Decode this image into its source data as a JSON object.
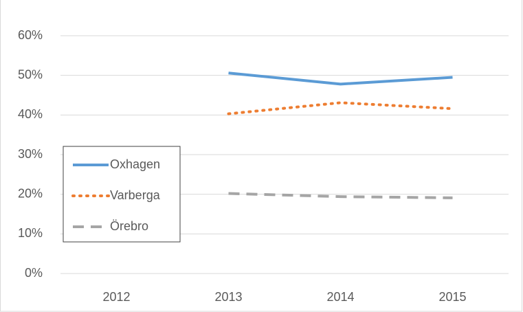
{
  "chart_data": {
    "type": "line",
    "categories": [
      "2012",
      "2013",
      "2014",
      "2015"
    ],
    "series": [
      {
        "name": "Oxhagen",
        "color": "#5b9bd5",
        "dash": "solid",
        "values": [
          null,
          50.6,
          47.8,
          49.5
        ]
      },
      {
        "name": "Varberga",
        "color": "#ed7d31",
        "dash": "dot",
        "values": [
          null,
          40.3,
          43.1,
          41.6
        ]
      },
      {
        "name": "Örebro",
        "color": "#a5a5a5",
        "dash": "dash",
        "values": [
          null,
          20.2,
          19.4,
          19.1
        ]
      }
    ],
    "ylim": [
      0,
      60
    ],
    "yticks": [
      {
        "value": 0,
        "label": "0%"
      },
      {
        "value": 10,
        "label": "10%"
      },
      {
        "value": 20,
        "label": "20%"
      },
      {
        "value": 30,
        "label": "30%"
      },
      {
        "value": 40,
        "label": "40%"
      },
      {
        "value": 50,
        "label": "50%"
      },
      {
        "value": 60,
        "label": "60%"
      }
    ],
    "grid": true,
    "legend": "left"
  }
}
